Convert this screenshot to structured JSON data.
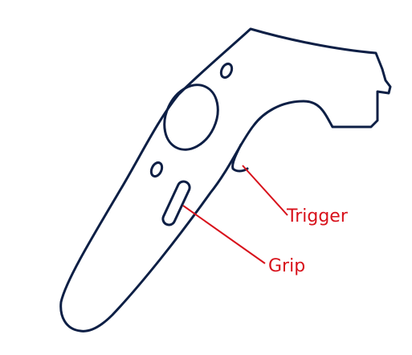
{
  "colors": {
    "outline": "#0d1f45",
    "label": "#d8111b",
    "background": "#ffffff"
  },
  "labels": {
    "trigger": "Trigger",
    "grip": "Grip"
  }
}
